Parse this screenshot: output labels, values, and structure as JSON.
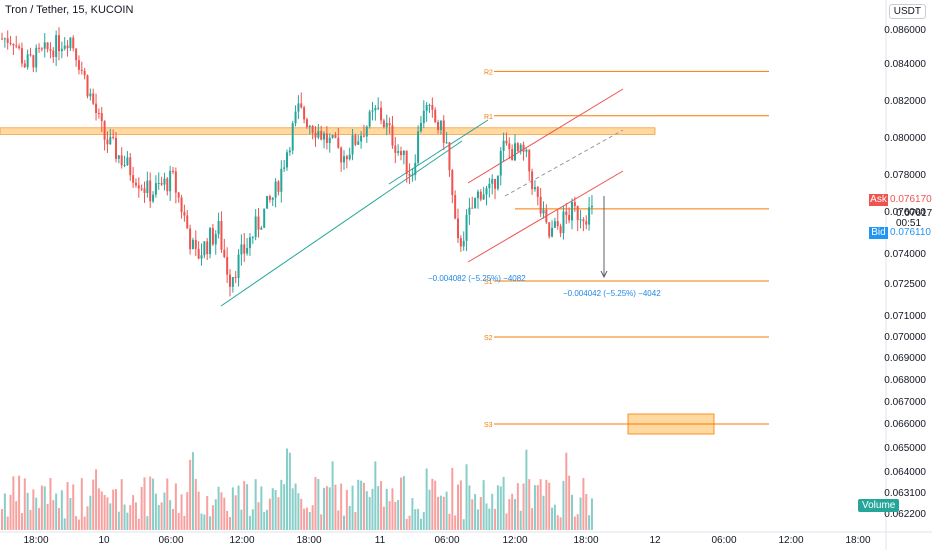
{
  "header": {
    "symbol_title": "Tron / Tether, 15, KUCOIN",
    "currency": "USDT"
  },
  "colors": {
    "up": "#26a69a",
    "down": "#ef5350",
    "up_volume": "#26a69a",
    "down_volume": "#ef5350",
    "level_line": "#f57c00",
    "zone_fill": "#ffcc80",
    "channel": "#ef5350",
    "trendline": "#26a69a",
    "measure_text": "#1e88e5",
    "ask": "#ef5350",
    "bid": "#2196f3"
  },
  "price_panel": {
    "ask_label": "Ask",
    "ask_value": "0.076170",
    "last_value": "0.076170",
    "countdown": "00:51",
    "bid_label": "Bid",
    "bid_value": "0.076110"
  },
  "volume_label": "Volume",
  "chart_data": {
    "type": "candlestick",
    "title": "Tron / Tether, 15, KUCOIN",
    "y_axis_ticks": [
      "0.086000",
      "0.084000",
      "0.082000",
      "0.080000",
      "0.078000",
      "0.076000",
      "0.074000",
      "0.072500",
      "0.071000",
      "0.070000",
      "0.069000",
      "0.068000",
      "0.067000",
      "0.066000",
      "0.065000",
      "0.064000",
      "0.063100",
      "0.062200"
    ],
    "x_axis_ticks": [
      "18:00",
      "10",
      "06:00",
      "12:00",
      "18:00",
      "11",
      "06:00",
      "12:00",
      "18:00",
      "12",
      "06:00",
      "12:00",
      "18:00"
    ],
    "price_trend_keypoints": [
      {
        "time": "09 16:00",
        "price": 0.0855
      },
      {
        "time": "09 17:00",
        "price": 0.084
      },
      {
        "time": "09 21:00",
        "price": 0.0856
      },
      {
        "time": "10 00:00",
        "price": 0.08
      },
      {
        "time": "10 04:00",
        "price": 0.077
      },
      {
        "time": "10 06:00",
        "price": 0.0778
      },
      {
        "time": "10 08:00",
        "price": 0.0738
      },
      {
        "time": "10 10:00",
        "price": 0.0752
      },
      {
        "time": "10 11:00",
        "price": 0.0728
      },
      {
        "time": "10 15:00",
        "price": 0.077
      },
      {
        "time": "10 17:00",
        "price": 0.0815
      },
      {
        "time": "10 21:00",
        "price": 0.079
      },
      {
        "time": "11 00:00",
        "price": 0.0815
      },
      {
        "time": "11 03:00",
        "price": 0.078
      },
      {
        "time": "11 04:00",
        "price": 0.0818
      },
      {
        "time": "11 06:00",
        "price": 0.08
      },
      {
        "time": "11 07:00",
        "price": 0.0742
      },
      {
        "time": "11 09:00",
        "price": 0.0772
      },
      {
        "time": "11 10:00",
        "price": 0.077
      },
      {
        "time": "11 11:00",
        "price": 0.0795
      },
      {
        "time": "11 13:00",
        "price": 0.079
      },
      {
        "time": "11 14:00",
        "price": 0.0767
      },
      {
        "time": "11 15:00",
        "price": 0.0748
      },
      {
        "time": "11 17:00",
        "price": 0.076
      }
    ],
    "horizontal_levels": [
      {
        "label": "R2",
        "price": 0.0836
      },
      {
        "label": "R1",
        "price": 0.0812
      },
      {
        "label": "",
        "price": 0.0804
      },
      {
        "label": "",
        "price": 0.07617
      },
      {
        "label": "S1",
        "price": 0.07265
      },
      {
        "label": "S2",
        "price": 0.07
      },
      {
        "label": "S3",
        "price": 0.066
      }
    ],
    "measurements": [
      {
        "text": "−0.004082 (−5.25%) −4082"
      },
      {
        "text": "−0.004042 (−5.25%) −4042"
      }
    ],
    "volume_ticks": []
  }
}
